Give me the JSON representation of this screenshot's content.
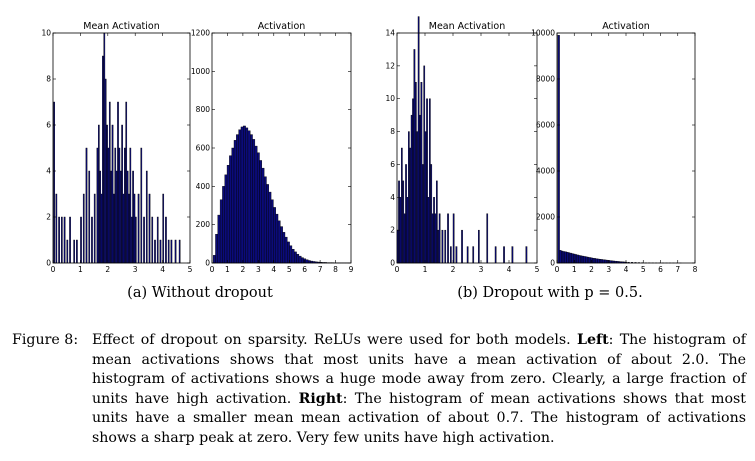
{
  "chart_data": [
    {
      "type": "bar",
      "title": "Mean Activation",
      "xlim": [
        0,
        5
      ],
      "ylim": [
        0,
        10
      ],
      "xticks": [
        0,
        1,
        2,
        3,
        4,
        5
      ],
      "yticks": [
        0,
        2,
        4,
        6,
        8,
        10
      ],
      "x": [
        0.02,
        0.1,
        0.2,
        0.3,
        0.4,
        0.5,
        0.6,
        0.75,
        0.85,
        1.0,
        1.1,
        1.2,
        1.3,
        1.4,
        1.5,
        1.6,
        1.65,
        1.7,
        1.75,
        1.8,
        1.85,
        1.9,
        1.95,
        2.0,
        2.05,
        2.1,
        2.15,
        2.2,
        2.25,
        2.3,
        2.35,
        2.4,
        2.45,
        2.5,
        2.55,
        2.6,
        2.65,
        2.7,
        2.75,
        2.8,
        2.85,
        2.9,
        2.95,
        3.0,
        3.1,
        3.2,
        3.3,
        3.4,
        3.5,
        3.6,
        3.7,
        3.8,
        3.9,
        4.0,
        4.1,
        4.2,
        4.3,
        4.45,
        4.6
      ],
      "values": [
        7,
        3,
        2,
        2,
        2,
        1,
        2,
        1,
        1,
        2,
        3,
        5,
        4,
        2,
        3,
        5,
        6,
        4,
        3,
        9,
        10,
        8,
        6,
        5,
        7,
        4,
        6,
        3,
        5,
        4,
        7,
        5,
        4,
        6,
        3,
        5,
        7,
        4,
        3,
        5,
        2,
        4,
        3,
        2,
        3,
        5,
        2,
        4,
        3,
        2,
        1,
        2,
        1,
        3,
        2,
        1,
        1,
        1,
        1
      ],
      "bar_width": 0.045
    },
    {
      "type": "bar",
      "title": "Activation",
      "xlim": [
        0,
        9
      ],
      "ylim": [
        0,
        1200
      ],
      "xticks": [
        0,
        1,
        2,
        3,
        4,
        5,
        6,
        7,
        8,
        9
      ],
      "yticks": [
        0,
        200,
        400,
        600,
        800,
        1000,
        1200
      ],
      "x": [
        0.075,
        0.225,
        0.375,
        0.525,
        0.675,
        0.825,
        0.975,
        1.125,
        1.275,
        1.425,
        1.575,
        1.725,
        1.875,
        2.025,
        2.175,
        2.325,
        2.475,
        2.625,
        2.775,
        2.925,
        3.075,
        3.225,
        3.375,
        3.525,
        3.675,
        3.825,
        3.975,
        4.125,
        4.275,
        4.425,
        4.575,
        4.725,
        4.875,
        5.025,
        5.175,
        5.325,
        5.475,
        5.625,
        5.775,
        5.925,
        6.075,
        6.225,
        6.375,
        6.525,
        6.675,
        6.825,
        6.975,
        7.125,
        7.275,
        7.425,
        7.575,
        7.725,
        7.875,
        8.025,
        8.175,
        8.325,
        8.475,
        8.625,
        8.775
      ],
      "values": [
        40,
        150,
        250,
        330,
        400,
        460,
        510,
        560,
        600,
        640,
        670,
        695,
        710,
        715,
        705,
        690,
        670,
        645,
        610,
        575,
        535,
        495,
        450,
        410,
        370,
        330,
        290,
        255,
        220,
        190,
        160,
        135,
        110,
        90,
        72,
        58,
        46,
        36,
        28,
        22,
        17,
        13,
        10,
        8,
        6,
        5,
        4,
        3,
        3,
        2,
        2,
        2,
        1,
        1,
        1,
        1,
        1,
        1,
        1
      ],
      "bar_width": 0.15
    },
    {
      "type": "bar",
      "title": "Mean Activation",
      "xlim": [
        0,
        5
      ],
      "ylim": [
        0,
        14
      ],
      "xticks": [
        0,
        1,
        2,
        3,
        4,
        5
      ],
      "yticks": [
        0,
        2,
        4,
        6,
        8,
        10,
        12,
        14
      ],
      "x": [
        0.0,
        0.05,
        0.1,
        0.15,
        0.2,
        0.25,
        0.3,
        0.35,
        0.4,
        0.45,
        0.5,
        0.55,
        0.6,
        0.65,
        0.7,
        0.75,
        0.8,
        0.85,
        0.9,
        0.95,
        1.0,
        1.05,
        1.1,
        1.15,
        1.2,
        1.25,
        1.3,
        1.35,
        1.4,
        1.45,
        1.5,
        1.6,
        1.7,
        1.8,
        1.9,
        2.0,
        2.1,
        2.3,
        2.5,
        2.7,
        2.9,
        3.2,
        3.5,
        3.8,
        4.1,
        4.6
      ],
      "values": [
        2,
        5,
        4,
        7,
        5,
        3,
        6,
        4,
        8,
        7,
        9,
        10,
        13,
        11,
        8,
        15,
        9,
        11,
        6,
        12,
        8,
        10,
        4,
        10,
        6,
        3,
        4,
        3,
        5,
        2,
        3,
        2,
        2,
        3,
        1,
        3,
        1,
        2,
        1,
        1,
        2,
        3,
        1,
        1,
        1,
        1
      ],
      "bar_width": 0.045
    },
    {
      "type": "bar",
      "title": "Activation",
      "xlim": [
        0,
        8
      ],
      "ylim": [
        0,
        10000
      ],
      "xticks": [
        0,
        1,
        2,
        3,
        4,
        5,
        6,
        7,
        8
      ],
      "yticks": [
        0,
        2000,
        4000,
        6000,
        8000,
        10000
      ],
      "x": [
        0.05,
        0.15,
        0.25,
        0.35,
        0.45,
        0.55,
        0.65,
        0.75,
        0.85,
        0.95,
        1.05,
        1.15,
        1.25,
        1.35,
        1.45,
        1.55,
        1.65,
        1.75,
        1.85,
        1.95,
        2.05,
        2.15,
        2.25,
        2.35,
        2.45,
        2.55,
        2.65,
        2.75,
        2.85,
        2.95,
        3.05,
        3.15,
        3.25,
        3.35,
        3.45,
        3.55,
        3.65,
        3.75,
        3.85,
        3.95,
        4.1,
        4.3,
        4.5,
        4.7,
        4.9,
        5.1,
        5.3,
        5.5,
        5.7,
        5.9,
        6.1,
        6.3,
        6.5,
        6.7,
        6.9,
        7.1
      ],
      "values": [
        9900,
        550,
        520,
        500,
        490,
        470,
        450,
        430,
        410,
        390,
        370,
        350,
        330,
        315,
        300,
        285,
        270,
        255,
        240,
        225,
        210,
        200,
        185,
        175,
        165,
        155,
        145,
        135,
        125,
        115,
        105,
        95,
        88,
        80,
        72,
        65,
        58,
        52,
        46,
        40,
        35,
        30,
        25,
        20,
        16,
        13,
        10,
        8,
        6,
        5,
        4,
        3,
        2,
        2,
        1,
        1
      ],
      "bar_width": 0.1
    }
  ],
  "subcaptions": {
    "a": "(a) Without dropout",
    "b": "(b) Dropout with p = 0.5."
  },
  "caption": {
    "label": "Figure 8:",
    "t1": "Effect of dropout on sparsity. ReLUs were used for both models.",
    "left_label": "Left",
    "t2": ": The histogram of mean activations shows that most units have a mean activation of about 2.0. The histogram of activations shows a huge mode away from zero. Clearly, a large fraction of units have high activation.",
    "right_label": "Right",
    "t3": ": The histogram of mean activations shows that most units have a smaller mean mean activation of about 0.7. The histogram of activations shows a sharp peak at zero. Very few units have high activation."
  },
  "colors": {
    "bar_fill": "#0b0b7a",
    "bar_edge": "#000000"
  }
}
